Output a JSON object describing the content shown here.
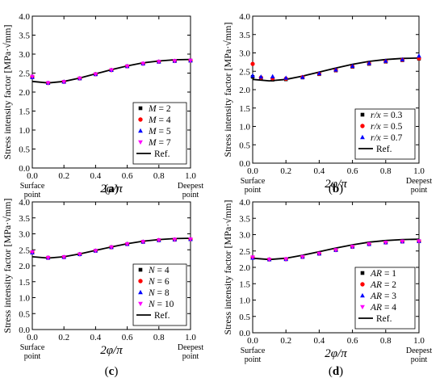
{
  "colors": {
    "axis": "#000000",
    "ref_line": "#000000",
    "series": [
      "#000000",
      "#ff0000",
      "#0000ff",
      "#ff00ff"
    ]
  },
  "chart_data": [
    {
      "id": "a",
      "caption_letter": "a",
      "type": "scatter",
      "xlabel": "2φ/π",
      "ylabel": "Stress intensity factor [MPa·√mm]",
      "xlim": [
        0.0,
        1.0
      ],
      "ylim": [
        0.0,
        4.0
      ],
      "xticks": [
        "0.0",
        "0.2",
        "0.4",
        "0.6",
        "0.8",
        "1.0"
      ],
      "yticks": [
        "0.0",
        "0.5",
        "1.0",
        "1.5",
        "2.0",
        "2.5",
        "3.0",
        "3.5",
        "4.0"
      ],
      "x_end_labels": {
        "left": [
          "Surface",
          "point"
        ],
        "right": [
          "Deepest",
          "point"
        ]
      },
      "legend": {
        "position": "bottom-right",
        "param": "M",
        "param_italic": true
      },
      "series": [
        {
          "label_value": "= 2",
          "marker": "square",
          "x": [
            0.0,
            0.1,
            0.2,
            0.3,
            0.4,
            0.5,
            0.6,
            0.7,
            0.8,
            0.9,
            1.0
          ],
          "y": [
            2.4,
            2.24,
            2.27,
            2.36,
            2.47,
            2.58,
            2.68,
            2.75,
            2.8,
            2.82,
            2.83
          ]
        },
        {
          "label_value": "= 4",
          "marker": "circle",
          "x": [
            0.0,
            0.1,
            0.2,
            0.3,
            0.4,
            0.5,
            0.6,
            0.7,
            0.8,
            0.9,
            1.0
          ],
          "y": [
            2.4,
            2.24,
            2.27,
            2.36,
            2.47,
            2.58,
            2.68,
            2.75,
            2.8,
            2.82,
            2.83
          ]
        },
        {
          "label_value": "= 5",
          "marker": "triangle-up",
          "x": [
            0.0,
            0.1,
            0.2,
            0.3,
            0.4,
            0.5,
            0.6,
            0.7,
            0.8,
            0.9,
            1.0
          ],
          "y": [
            2.39,
            2.24,
            2.27,
            2.36,
            2.47,
            2.58,
            2.68,
            2.75,
            2.8,
            2.82,
            2.83
          ]
        },
        {
          "label_value": "= 7",
          "marker": "triangle-down",
          "x": [
            0.0,
            0.1,
            0.2,
            0.3,
            0.4,
            0.5,
            0.6,
            0.7,
            0.8,
            0.9,
            1.0
          ],
          "y": [
            2.41,
            2.24,
            2.27,
            2.36,
            2.47,
            2.58,
            2.68,
            2.75,
            2.8,
            2.82,
            2.83
          ]
        }
      ],
      "reference": {
        "label": "Ref.",
        "x": [
          0.0,
          0.1,
          0.2,
          0.3,
          0.4,
          0.5,
          0.6,
          0.7,
          0.8,
          0.9,
          1.0
        ],
        "y": [
          2.28,
          2.24,
          2.28,
          2.37,
          2.48,
          2.59,
          2.69,
          2.77,
          2.82,
          2.85,
          2.86
        ]
      }
    },
    {
      "id": "b",
      "caption_letter": "b",
      "type": "scatter",
      "xlabel": "2φ/π",
      "ylabel": "Stress intensity factor [MPa·√mm]",
      "xlim": [
        0.0,
        1.0
      ],
      "ylim": [
        0.0,
        4.0
      ],
      "xticks": [
        "0.0",
        "0.2",
        "0.4",
        "0.6",
        "0.8",
        "1.0"
      ],
      "yticks": [
        "0.0",
        "0.5",
        "1.0",
        "1.5",
        "2.0",
        "2.5",
        "3.0",
        "3.5",
        "4.0"
      ],
      "x_end_labels": {
        "left": [
          "Surface",
          "point"
        ],
        "right": [
          "Deepest",
          "point"
        ]
      },
      "legend": {
        "position": "bottom-right",
        "param": "r/x",
        "param_italic": true
      },
      "series": [
        {
          "label_value": "= 0.3",
          "marker": "square",
          "x": [
            0.0,
            0.05,
            0.12,
            0.2,
            0.3,
            0.4,
            0.5,
            0.6,
            0.7,
            0.8,
            0.9,
            1.0
          ],
          "y": [
            2.35,
            2.3,
            2.27,
            2.28,
            2.33,
            2.42,
            2.52,
            2.62,
            2.7,
            2.76,
            2.8,
            2.84
          ]
        },
        {
          "label_value": "= 0.5",
          "marker": "circle",
          "x": [
            0.0,
            0.05,
            0.12,
            0.2,
            0.3,
            0.4,
            0.5,
            0.6,
            0.7,
            0.8,
            0.9,
            1.0
          ],
          "y": [
            2.7,
            2.33,
            2.31,
            2.3,
            2.34,
            2.43,
            2.53,
            2.63,
            2.71,
            2.77,
            2.81,
            2.85
          ]
        },
        {
          "label_value": "= 0.7",
          "marker": "triangle-up",
          "x": [
            0.0,
            0.05,
            0.12,
            0.2,
            0.3,
            0.4,
            0.5,
            0.6,
            0.7,
            0.8,
            0.9,
            1.0
          ],
          "y": [
            2.38,
            2.35,
            2.36,
            2.32,
            2.34,
            2.44,
            2.54,
            2.64,
            2.72,
            2.78,
            2.82,
            2.92
          ]
        }
      ],
      "reference": {
        "label": "Ref.",
        "x": [
          0.0,
          0.1,
          0.2,
          0.3,
          0.4,
          0.5,
          0.6,
          0.7,
          0.8,
          0.9,
          1.0
        ],
        "y": [
          2.28,
          2.24,
          2.28,
          2.37,
          2.48,
          2.59,
          2.69,
          2.77,
          2.82,
          2.85,
          2.86
        ]
      }
    },
    {
      "id": "c",
      "caption_letter": "c",
      "type": "scatter",
      "xlabel": "2φ/π",
      "ylabel": "Stress intensity factor [MPa·√mm]",
      "xlim": [
        0.0,
        1.0
      ],
      "ylim": [
        0.0,
        4.0
      ],
      "xticks": [
        "0.0",
        "0.2",
        "0.4",
        "0.6",
        "0.8",
        "1.0"
      ],
      "yticks": [
        "0.0",
        "0.5",
        "1.0",
        "1.5",
        "2.0",
        "2.5",
        "3.0",
        "3.5",
        "4.0"
      ],
      "x_end_labels": {
        "left": [
          "Surface",
          "point"
        ],
        "right": [
          "Deepest",
          "point"
        ]
      },
      "legend": {
        "position": "bottom-right",
        "param": "N",
        "param_italic": true
      },
      "series": [
        {
          "label_value": "= 4",
          "marker": "square",
          "x": [
            0.0,
            0.1,
            0.2,
            0.3,
            0.4,
            0.5,
            0.6,
            0.7,
            0.8,
            0.9,
            1.0
          ],
          "y": [
            2.42,
            2.25,
            2.27,
            2.36,
            2.47,
            2.58,
            2.68,
            2.75,
            2.8,
            2.82,
            2.83
          ]
        },
        {
          "label_value": "= 6",
          "marker": "circle",
          "x": [
            0.0,
            0.1,
            0.2,
            0.3,
            0.4,
            0.5,
            0.6,
            0.7,
            0.8,
            0.9,
            1.0
          ],
          "y": [
            2.42,
            2.25,
            2.27,
            2.36,
            2.47,
            2.58,
            2.68,
            2.75,
            2.8,
            2.82,
            2.83
          ]
        },
        {
          "label_value": "= 8",
          "marker": "triangle-up",
          "x": [
            0.0,
            0.1,
            0.2,
            0.3,
            0.4,
            0.5,
            0.6,
            0.7,
            0.8,
            0.9,
            1.0
          ],
          "y": [
            2.41,
            2.25,
            2.27,
            2.36,
            2.47,
            2.58,
            2.68,
            2.75,
            2.8,
            2.82,
            2.83
          ]
        },
        {
          "label_value": "= 10",
          "marker": "triangle-down",
          "x": [
            0.0,
            0.1,
            0.2,
            0.3,
            0.4,
            0.5,
            0.6,
            0.7,
            0.8,
            0.9,
            1.0
          ],
          "y": [
            2.43,
            2.25,
            2.27,
            2.36,
            2.47,
            2.58,
            2.68,
            2.75,
            2.8,
            2.82,
            2.83
          ]
        }
      ],
      "reference": {
        "label": "Ref.",
        "x": [
          0.0,
          0.1,
          0.2,
          0.3,
          0.4,
          0.5,
          0.6,
          0.7,
          0.8,
          0.9,
          1.0
        ],
        "y": [
          2.28,
          2.24,
          2.28,
          2.37,
          2.48,
          2.59,
          2.69,
          2.77,
          2.82,
          2.85,
          2.86
        ]
      }
    },
    {
      "id": "d",
      "caption_letter": "d",
      "type": "scatter",
      "xlabel": "2φ/π",
      "ylabel": "Stress intensity factor [MPa·√mm]",
      "xlim": [
        0.0,
        1.0
      ],
      "ylim": [
        0.0,
        4.0
      ],
      "xticks": [
        "0.0",
        "0.2",
        "0.4",
        "0.6",
        "0.8",
        "1.0"
      ],
      "yticks": [
        "0.0",
        "0.5",
        "1.0",
        "1.5",
        "2.0",
        "2.5",
        "3.0",
        "3.5",
        "4.0"
      ],
      "x_end_labels": {
        "left": [
          "Surface",
          "point"
        ],
        "right": [
          "Deepest",
          "point"
        ]
      },
      "legend": {
        "position": "bottom-right",
        "param": "AR",
        "param_italic": true
      },
      "series": [
        {
          "label_value": "= 1",
          "marker": "square",
          "x": [
            0.0,
            0.1,
            0.2,
            0.3,
            0.4,
            0.5,
            0.6,
            0.7,
            0.8,
            0.9,
            1.0
          ],
          "y": [
            2.3,
            2.24,
            2.25,
            2.32,
            2.42,
            2.53,
            2.63,
            2.71,
            2.76,
            2.79,
            2.8
          ]
        },
        {
          "label_value": "= 2",
          "marker": "circle",
          "x": [
            0.0,
            0.1,
            0.2,
            0.3,
            0.4,
            0.5,
            0.6,
            0.7,
            0.8,
            0.9,
            1.0
          ],
          "y": [
            2.3,
            2.24,
            2.25,
            2.32,
            2.42,
            2.53,
            2.63,
            2.71,
            2.76,
            2.79,
            2.8
          ]
        },
        {
          "label_value": "= 3",
          "marker": "triangle-up",
          "x": [
            0.0,
            0.1,
            0.2,
            0.3,
            0.4,
            0.5,
            0.6,
            0.7,
            0.8,
            0.9,
            1.0
          ],
          "y": [
            2.29,
            2.24,
            2.25,
            2.32,
            2.42,
            2.53,
            2.63,
            2.71,
            2.76,
            2.79,
            2.8
          ]
        },
        {
          "label_value": "= 4",
          "marker": "triangle-down",
          "x": [
            0.0,
            0.1,
            0.2,
            0.3,
            0.4,
            0.5,
            0.6,
            0.7,
            0.8,
            0.9,
            1.0
          ],
          "y": [
            2.31,
            2.24,
            2.25,
            2.32,
            2.42,
            2.53,
            2.63,
            2.71,
            2.76,
            2.79,
            2.8
          ]
        }
      ],
      "reference": {
        "label": "Ref.",
        "x": [
          0.0,
          0.1,
          0.2,
          0.3,
          0.4,
          0.5,
          0.6,
          0.7,
          0.8,
          0.9,
          1.0
        ],
        "y": [
          2.28,
          2.24,
          2.28,
          2.37,
          2.48,
          2.59,
          2.69,
          2.77,
          2.82,
          2.85,
          2.86
        ]
      }
    }
  ]
}
